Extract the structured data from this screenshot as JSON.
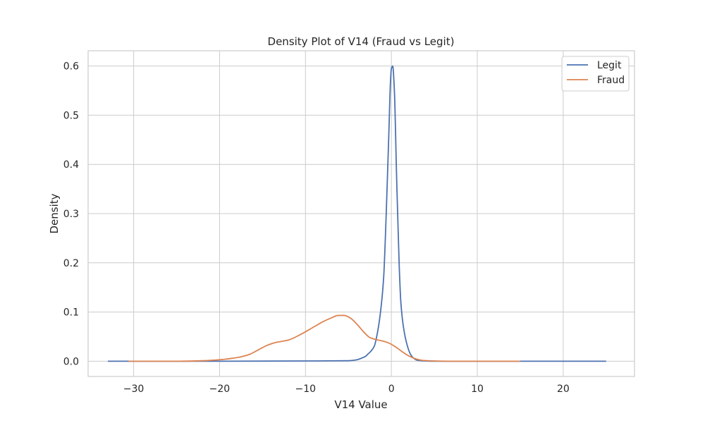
{
  "chart_data": {
    "type": "line",
    "title": "Density Plot of V14 (Fraud vs Legit)",
    "xlabel": "V14 Value",
    "ylabel": "Density",
    "xlim": [
      -35.3,
      28.3
    ],
    "ylim": [
      -0.031,
      0.631
    ],
    "xticks": [
      -30,
      -20,
      -10,
      0,
      10,
      20
    ],
    "yticks": [
      0.0,
      0.1,
      0.2,
      0.3,
      0.4,
      0.5,
      0.6
    ],
    "xtick_labels": [
      "−30",
      "−20",
      "−10",
      "0",
      "10",
      "20"
    ],
    "ytick_labels": [
      "0.0",
      "0.1",
      "0.2",
      "0.3",
      "0.4",
      "0.5",
      "0.6"
    ],
    "grid": true,
    "legend_position": "top-right",
    "series": [
      {
        "name": "Legit",
        "color": "#4c72b0",
        "x": [
          -33.0,
          -20.0,
          -10.0,
          -5.0,
          -4.0,
          -3.5,
          -3.0,
          -2.7,
          -2.4,
          -2.0,
          -1.6,
          -1.2,
          -0.9,
          -0.6,
          -0.3,
          -0.1,
          0.0,
          0.15,
          0.35,
          0.6,
          0.9,
          1.1,
          1.4,
          1.8,
          2.2,
          2.6,
          3.0,
          3.5,
          5.0,
          10.0,
          20.0,
          25.0
        ],
        "y": [
          0.0,
          0.0,
          0.0005,
          0.001,
          0.003,
          0.006,
          0.01,
          0.015,
          0.02,
          0.03,
          0.06,
          0.11,
          0.17,
          0.3,
          0.46,
          0.57,
          0.595,
          0.6,
          0.55,
          0.38,
          0.2,
          0.12,
          0.07,
          0.035,
          0.015,
          0.006,
          0.002,
          0.001,
          0.0,
          0.0,
          0.0,
          0.0
        ]
      },
      {
        "name": "Fraud",
        "color": "#dd8452",
        "x": [
          -30.6,
          -25.0,
          -22.0,
          -20.0,
          -18.5,
          -17.5,
          -16.5,
          -15.5,
          -14.5,
          -13.5,
          -12.0,
          -10.5,
          -9.0,
          -8.0,
          -7.0,
          -6.2,
          -5.5,
          -4.8,
          -4.0,
          -3.2,
          -2.5,
          -1.8,
          -1.0,
          -0.3,
          0.5,
          1.2,
          2.0,
          2.8,
          3.5,
          5.0,
          7.0,
          10.0,
          15.0
        ],
        "y": [
          0.0,
          0.0,
          0.001,
          0.003,
          0.006,
          0.009,
          0.014,
          0.023,
          0.032,
          0.038,
          0.043,
          0.055,
          0.07,
          0.08,
          0.088,
          0.093,
          0.093,
          0.088,
          0.075,
          0.059,
          0.048,
          0.044,
          0.041,
          0.037,
          0.029,
          0.02,
          0.011,
          0.005,
          0.002,
          0.0005,
          0.0,
          0.0,
          0.0
        ]
      }
    ]
  }
}
